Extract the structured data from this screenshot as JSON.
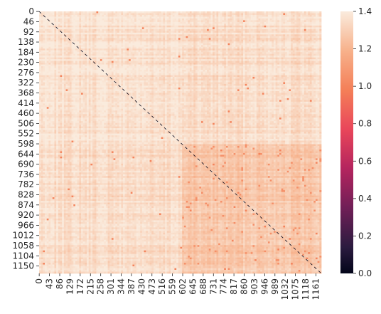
{
  "chart_data": {
    "type": "heatmap",
    "title": "",
    "xlabel": "",
    "ylabel": "",
    "matrix_size": 1184,
    "value_range": [
      0,
      1.4
    ],
    "diagonal_value": 0,
    "x_ticks": [
      0,
      43,
      86,
      129,
      172,
      215,
      258,
      301,
      344,
      387,
      430,
      473,
      516,
      559,
      602,
      645,
      688,
      731,
      774,
      817,
      860,
      903,
      946,
      989,
      1032,
      1075,
      1118,
      1161
    ],
    "y_ticks": [
      0,
      46,
      92,
      138,
      184,
      230,
      276,
      322,
      368,
      414,
      460,
      506,
      552,
      598,
      644,
      690,
      736,
      782,
      828,
      874,
      920,
      966,
      1012,
      1058,
      1104,
      1150
    ],
    "colorbar": {
      "ticks": [
        0.0,
        0.2,
        0.4,
        0.6,
        0.8,
        1.0,
        1.2,
        1.4
      ],
      "tick_labels": [
        "0.0",
        "0.2",
        "0.4",
        "0.6",
        "0.8",
        "1.0",
        "1.2",
        "1.4"
      ],
      "colormap": "rocket"
    },
    "regions": [
      {
        "rows": [
          0,
          595
        ],
        "cols": [
          0,
          595
        ],
        "typical_value": 1.37
      },
      {
        "rows": [
          595,
          1184
        ],
        "cols": [
          595,
          1184
        ],
        "typical_value": 1.27
      },
      {
        "rows": [
          0,
          595
        ],
        "cols": [
          595,
          1184
        ],
        "typical_value": 1.35
      }
    ]
  }
}
